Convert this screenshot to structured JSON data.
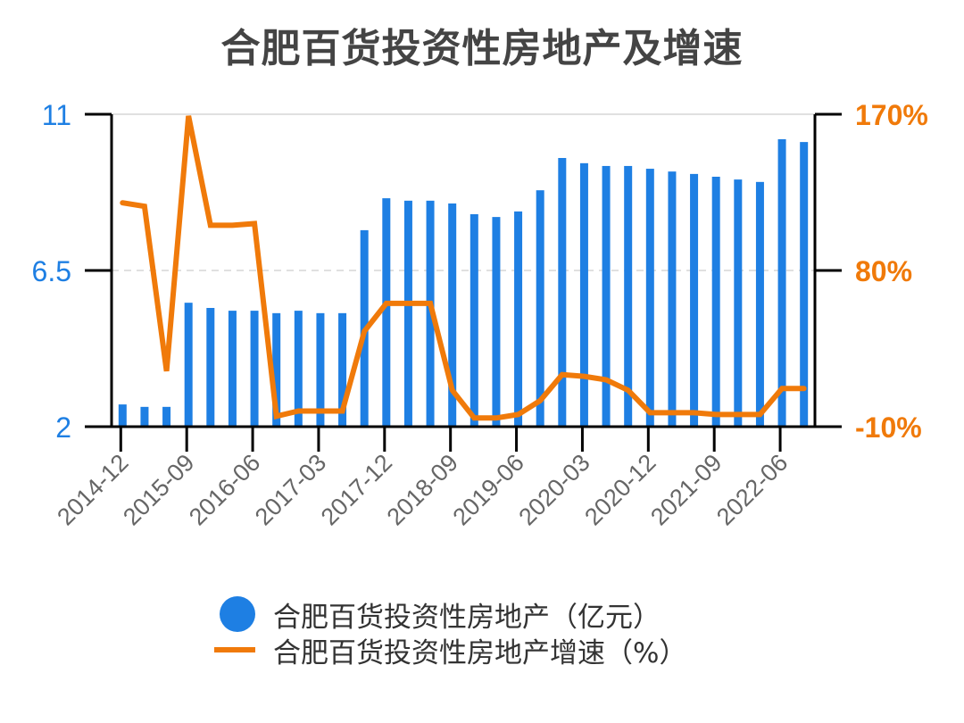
{
  "title": "合肥百货投资性房地产及增速",
  "colors": {
    "bar": "#1E7FE3",
    "line": "#F07A0A",
    "left_axis": "#1E7FE3",
    "right_axis": "#F07A0A",
    "grid": "#E0E0E0",
    "axis": "#000000",
    "tick_label": "#666666"
  },
  "legend": {
    "items": [
      {
        "label": "合肥百货投资性房地产（亿元）",
        "marker": "circle"
      },
      {
        "label": "合肥百货投资性房地产增速（%）",
        "marker": "line"
      }
    ]
  },
  "chart_data": {
    "type": "bar+line",
    "title": "合肥百货投资性房地产及增速",
    "categories": [
      "2014-12",
      "2015-03",
      "2015-06",
      "2015-09",
      "2015-12",
      "2016-03",
      "2016-06",
      "2016-09",
      "2016-12",
      "2017-03",
      "2017-06",
      "2017-09",
      "2017-12",
      "2018-03",
      "2018-06",
      "2018-09",
      "2018-12",
      "2019-03",
      "2019-06",
      "2019-09",
      "2019-12",
      "2020-03",
      "2020-06",
      "2020-09",
      "2020-12",
      "2021-03",
      "2021-06",
      "2021-09",
      "2021-12",
      "2022-03",
      "2022-06",
      "2022-09"
    ],
    "x_tick_labels": [
      "2014-12",
      "2015-09",
      "2016-06",
      "2017-03",
      "2017-12",
      "2018-09",
      "2019-06",
      "2020-03",
      "2020-12",
      "2021-09",
      "2022-06"
    ],
    "series": [
      {
        "name": "合肥百货投资性房地产（亿元）",
        "type": "bar",
        "axis": "left",
        "values": [
          2.64,
          2.57,
          2.57,
          5.57,
          5.42,
          5.34,
          5.34,
          5.27,
          5.34,
          5.27,
          5.27,
          7.66,
          8.58,
          8.51,
          8.51,
          8.43,
          8.12,
          8.04,
          8.2,
          8.81,
          9.74,
          9.59,
          9.51,
          9.51,
          9.43,
          9.35,
          9.28,
          9.2,
          9.12,
          9.05,
          10.28,
          10.2
        ]
      },
      {
        "name": "合肥百货投资性房地产增速（%）",
        "type": "line",
        "axis": "right",
        "values": [
          119,
          117,
          22,
          169,
          106,
          106,
          107,
          -4,
          -1,
          -1,
          -1,
          45,
          61,
          61,
          61,
          11,
          -5,
          -5,
          -3,
          5,
          20,
          19,
          17,
          11,
          -2,
          -2,
          -2,
          -3,
          -3,
          -3,
          12,
          12
        ]
      }
    ],
    "left_axis": {
      "ticks": [
        "2",
        "6.5",
        "11"
      ],
      "range": [
        2,
        11
      ]
    },
    "right_axis": {
      "ticks": [
        "-10%",
        "80%",
        "170%"
      ],
      "range": [
        -10,
        170
      ]
    },
    "grid": true,
    "legend_position": "bottom"
  }
}
